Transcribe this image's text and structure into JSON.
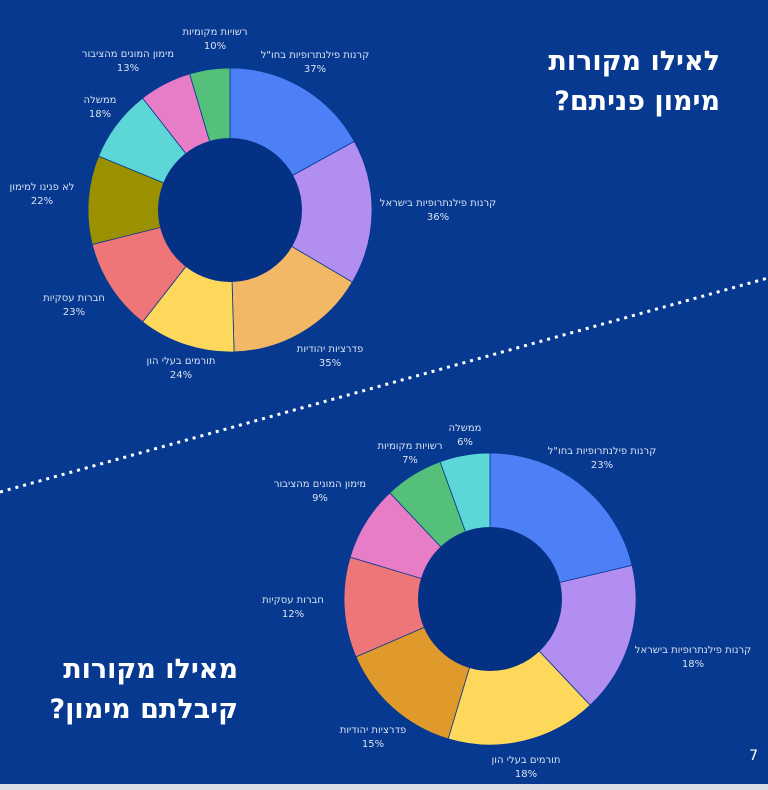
{
  "slide": {
    "title_top": [
      "לאילו מקורות",
      "מימון פניתם?"
    ],
    "title_bottom": [
      "מאילו מקורות",
      "קיבלתם מימון?"
    ],
    "page_number": "7"
  },
  "colors": {
    "background": "#06398f",
    "hole": "#053185",
    "label_text": "#d9e2f2",
    "divider": "#ffffff"
  },
  "chart_data": [
    {
      "type": "pie",
      "donut": true,
      "question": "לאילו מקורות פניתם?",
      "slices": [
        {
          "label": "קרנות פילנתרופיות בחו\"ל",
          "value": 37,
          "value_label": "37%",
          "color": "#4d7ff7"
        },
        {
          "label": "קרנות פילנתרופיות בישראל",
          "value": 36,
          "value_label": "36%",
          "color": "#b18ef0"
        },
        {
          "label": "פדרציות יהודיות",
          "value": 35,
          "value_label": "35%",
          "color": "#f2b866"
        },
        {
          "label": "תורמים בעלי הון",
          "value": 24,
          "value_label": "24%",
          "color": "#fdd85b"
        },
        {
          "label": "חברות עסקיות",
          "value": 23,
          "value_label": "23%",
          "color": "#ef7678"
        },
        {
          "label": "לא פנינו למימון",
          "value": 22,
          "value_label": "22%",
          "color": "#9b9100"
        },
        {
          "label": "ממשלה",
          "value": 18,
          "value_label": "18%",
          "color": "#5cd6d6"
        },
        {
          "label": "מימון המונים מהציבור",
          "value": 13,
          "value_label": "13%",
          "color": "#e77cc7"
        },
        {
          "label": "רשויות מקומיות",
          "value": 10,
          "value_label": "10%",
          "color": "#55c07a"
        }
      ]
    },
    {
      "type": "pie",
      "donut": true,
      "question": "מאילו מקורות קיבלתם מימון?",
      "slices": [
        {
          "label": "קרנות פילנתרופיות בחו\"ל",
          "value": 23,
          "value_label": "23%",
          "color": "#4d7ff7"
        },
        {
          "label": "קרנות פילנתרופיות בישראל",
          "value": 18,
          "value_label": "18%",
          "color": "#b18ef0"
        },
        {
          "label": "תורמים בעלי הון",
          "value": 18,
          "value_label": "18%",
          "color": "#fdd85b"
        },
        {
          "label": "פדרציות יהודיות",
          "value": 15,
          "value_label": "15%",
          "color": "#e09a2c"
        },
        {
          "label": "חברות עסקיות",
          "value": 12,
          "value_label": "12%",
          "color": "#ef7678"
        },
        {
          "label": "מימון המונים מהציבור",
          "value": 9,
          "value_label": "9%",
          "color": "#e77cc7"
        },
        {
          "label": "רשויות מקומיות",
          "value": 7,
          "value_label": "7%",
          "color": "#55c07a"
        },
        {
          "label": "ממשלה",
          "value": 6,
          "value_label": "6%",
          "color": "#5cd6d6"
        }
      ]
    }
  ]
}
